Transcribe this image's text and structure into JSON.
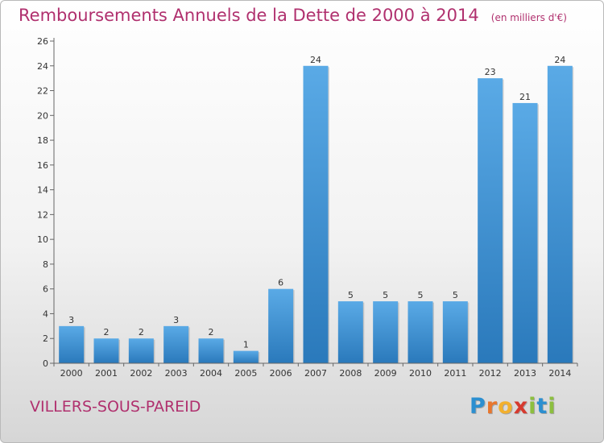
{
  "title": "Remboursements Annuels de la Dette de 2000 à 2014",
  "unit_note": "(en milliers d'€)",
  "place": "VILLERS-SOUS-PAREID",
  "logo": {
    "text": "Proxiti",
    "letters": [
      {
        "ch": "P",
        "color": "#2c8fd0"
      },
      {
        "ch": "r",
        "color": "#e8772e"
      },
      {
        "ch": "o",
        "color": "#f2b02e"
      },
      {
        "ch": "x",
        "color": "#d63a2f"
      },
      {
        "ch": "i",
        "color": "#8cbf3f"
      },
      {
        "ch": "t",
        "color": "#2c8fd0"
      },
      {
        "ch": "i",
        "color": "#8cbf3f"
      }
    ]
  },
  "colors": {
    "title": "#b0306e",
    "bar_light": "#5aaae6",
    "bar_dark": "#2a79bb"
  },
  "chart_data": {
    "type": "bar",
    "categories": [
      "2000",
      "2001",
      "2002",
      "2003",
      "2004",
      "2005",
      "2006",
      "2007",
      "2008",
      "2009",
      "2010",
      "2011",
      "2012",
      "2013",
      "2014"
    ],
    "values": [
      3,
      2,
      2,
      3,
      2,
      1,
      6,
      24,
      5,
      5,
      5,
      5,
      23,
      21,
      24
    ],
    "ylim": [
      0,
      26
    ],
    "yticks": [
      0,
      2,
      4,
      6,
      8,
      10,
      12,
      14,
      16,
      18,
      20,
      22,
      24,
      26
    ],
    "grid": false,
    "data_labels": true
  }
}
